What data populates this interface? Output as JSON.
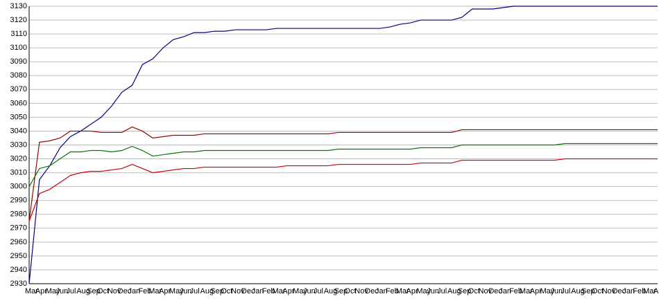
{
  "chart_data": {
    "type": "line",
    "categories": [
      "Mar",
      "Apr",
      "May",
      "Jun",
      "Jul",
      "Aug",
      "Sep",
      "Oct",
      "Nov",
      "Dec",
      "Jan",
      "Feb",
      "Mar",
      "Apr",
      "May",
      "Jun",
      "Jul",
      "Aug",
      "Sep",
      "Oct",
      "Nov",
      "Dec",
      "Jan",
      "Feb",
      "Mar",
      "Apr",
      "May",
      "Jun",
      "Jul",
      "Aug",
      "Sep",
      "Oct",
      "Nov",
      "Dec",
      "Jan",
      "Feb",
      "Mar",
      "Apr",
      "May",
      "Jun",
      "Jul",
      "Aug",
      "Sep",
      "Oct",
      "Nov",
      "Dec",
      "Jan",
      "Feb",
      "Mar",
      "Apr",
      "May",
      "Jun",
      "Jul",
      "Aug",
      "Sep",
      "Oct",
      "Nov",
      "Dec",
      "Jan",
      "Feb",
      "Mar",
      "Apr"
    ],
    "series": [
      {
        "color": "#000080",
        "values": [
          2930,
          3005,
          3015,
          3028,
          3036,
          3040,
          3045,
          3050,
          3058,
          3068,
          3073,
          3088,
          3092,
          3100,
          3106,
          3108,
          3111,
          3111,
          3112,
          3112,
          3113,
          3113,
          3113,
          3113,
          3114,
          3114,
          3114,
          3114,
          3114,
          3114,
          3114,
          3114,
          3114,
          3114,
          3114,
          3115,
          3117,
          3118,
          3120,
          3120,
          3120,
          3120,
          3122,
          3128,
          3128,
          3128,
          3129,
          3130,
          3130,
          3130,
          3130,
          3130,
          3130,
          3130,
          3130,
          3130,
          3130,
          3130,
          3130,
          3130,
          3130,
          3130
        ]
      },
      {
        "color": "#990000",
        "values": [
          2975,
          3032,
          3033,
          3035,
          3040,
          3040,
          3040,
          3039,
          3039,
          3039,
          3043,
          3040,
          3035,
          3036,
          3037,
          3037,
          3037,
          3038,
          3038,
          3038,
          3038,
          3038,
          3038,
          3038,
          3038,
          3038,
          3038,
          3038,
          3038,
          3038,
          3039,
          3039,
          3039,
          3039,
          3039,
          3039,
          3039,
          3039,
          3039,
          3039,
          3039,
          3039,
          3041,
          3041,
          3041,
          3041,
          3041,
          3041,
          3041,
          3041,
          3041,
          3041,
          3041,
          3041,
          3041,
          3041,
          3041,
          3041,
          3041,
          3041,
          3041,
          3041
        ]
      },
      {
        "color": "#007700",
        "values": [
          3000,
          3013,
          3015,
          3020,
          3025,
          3025,
          3026,
          3026,
          3025,
          3026,
          3029,
          3026,
          3022,
          3023,
          3024,
          3025,
          3025,
          3026,
          3026,
          3026,
          3026,
          3026,
          3026,
          3026,
          3026,
          3026,
          3026,
          3026,
          3026,
          3026,
          3027,
          3027,
          3027,
          3027,
          3027,
          3027,
          3027,
          3027,
          3028,
          3028,
          3028,
          3028,
          3030,
          3030,
          3030,
          3030,
          3030,
          3030,
          3030,
          3030,
          3030,
          3030,
          3031,
          3031,
          3031,
          3031,
          3031,
          3031,
          3031,
          3031,
          3031,
          3031
        ]
      },
      {
        "color": "#cc0000",
        "values": [
          2975,
          2995,
          2998,
          3003,
          3008,
          3010,
          3011,
          3011,
          3012,
          3013,
          3016,
          3013,
          3010,
          3011,
          3012,
          3013,
          3013,
          3014,
          3014,
          3014,
          3014,
          3014,
          3014,
          3014,
          3014,
          3015,
          3015,
          3015,
          3015,
          3015,
          3016,
          3016,
          3016,
          3016,
          3016,
          3016,
          3016,
          3016,
          3017,
          3017,
          3017,
          3017,
          3019,
          3019,
          3019,
          3019,
          3019,
          3019,
          3019,
          3019,
          3019,
          3019,
          3020,
          3020,
          3020,
          3020,
          3020,
          3020,
          3020,
          3020,
          3020,
          3020
        ]
      }
    ],
    "ylim": [
      2930,
      3130
    ],
    "yticks": [
      2930,
      2940,
      2950,
      2960,
      2970,
      2980,
      2990,
      3000,
      3010,
      3020,
      3030,
      3040,
      3050,
      3060,
      3070,
      3080,
      3090,
      3100,
      3110,
      3120,
      3130
    ],
    "grid": true
  }
}
